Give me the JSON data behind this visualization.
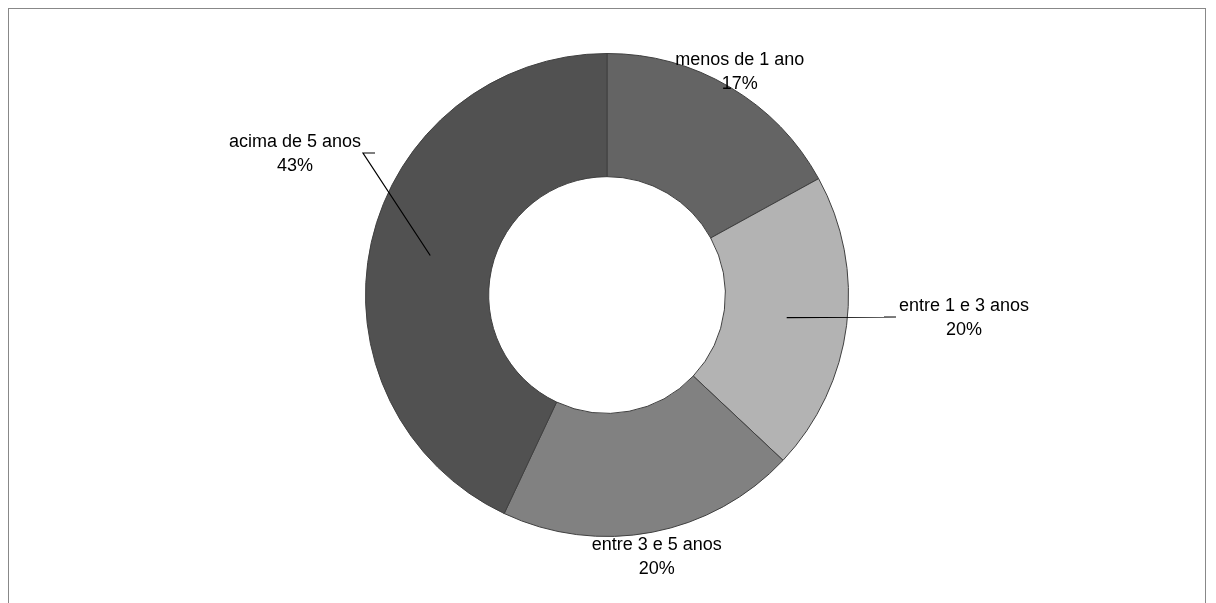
{
  "chart_data": {
    "type": "donut",
    "categories": [
      "menos de 1 ano",
      "entre 1 e 3 anos",
      "entre 3 e 5 anos",
      "acima de 5 anos"
    ],
    "values": [
      17,
      20,
      20,
      43
    ],
    "value_labels": [
      "17%",
      "20%",
      "20%",
      "43%"
    ],
    "colors": [
      "#646464",
      "#b3b3b3",
      "#818181",
      "#515151"
    ]
  }
}
